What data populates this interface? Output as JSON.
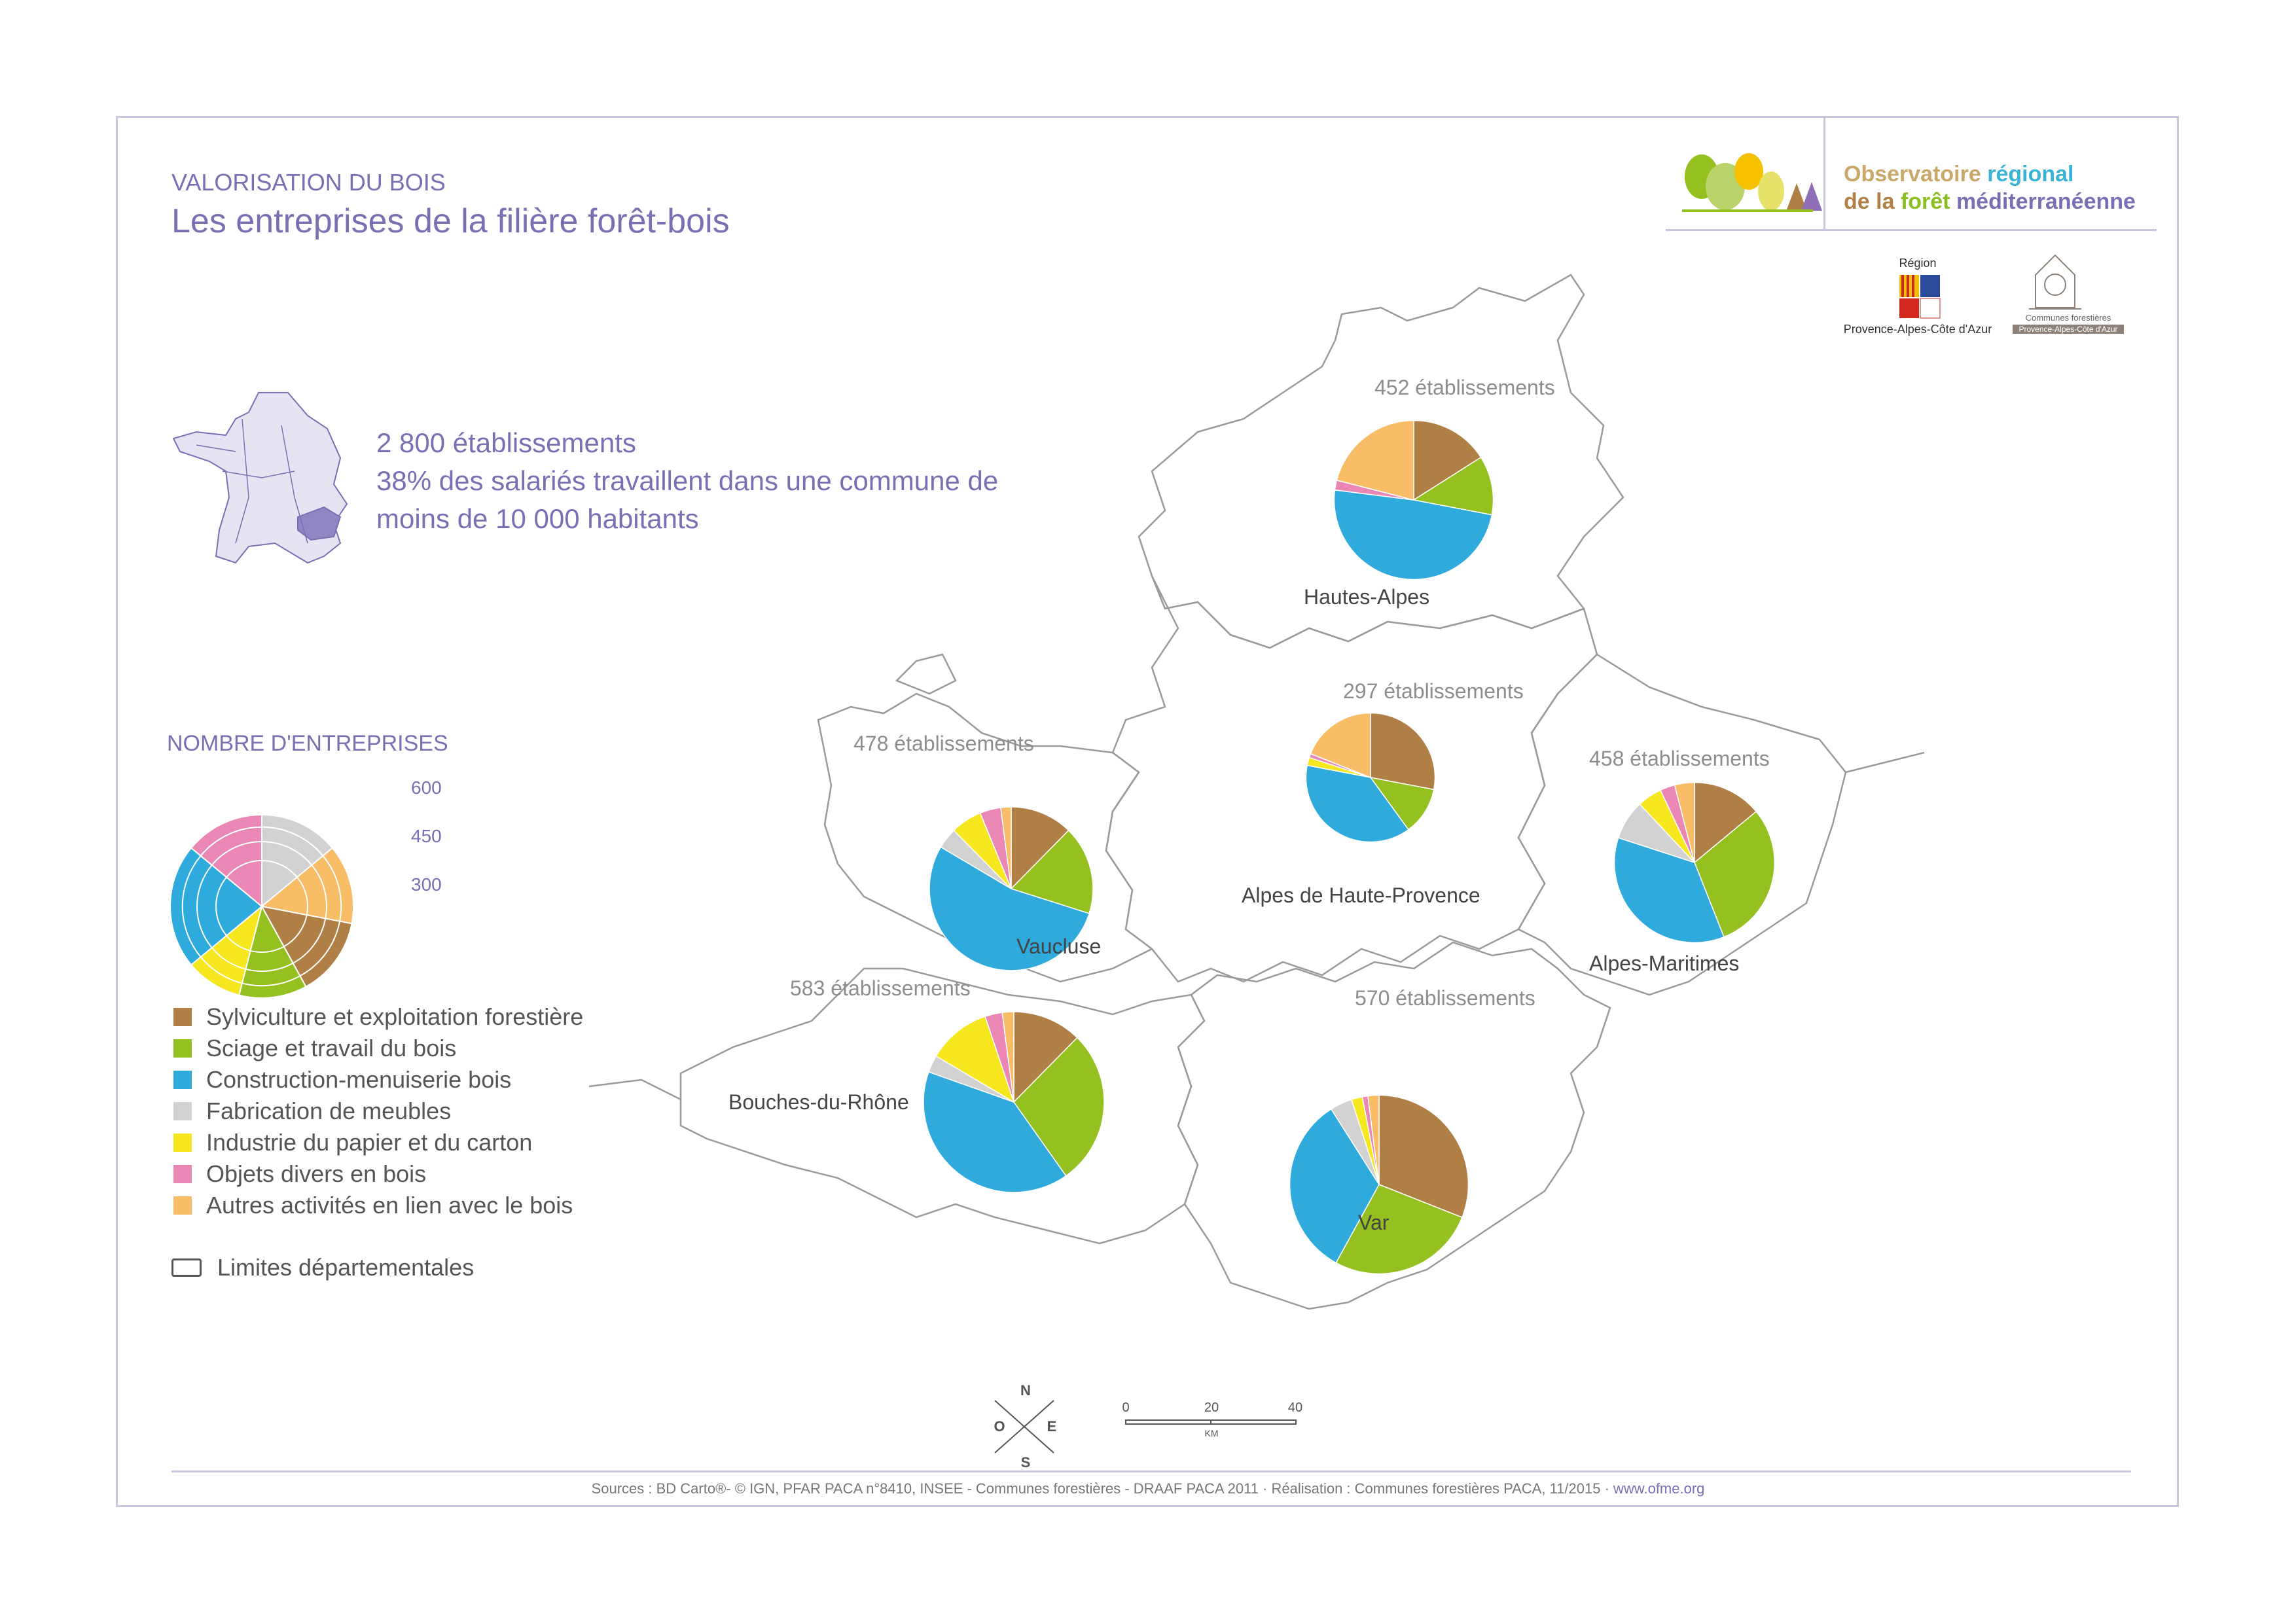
{
  "header": {
    "subtitle": "VALORISATION DU BOIS",
    "title": "Les entreprises de la filière forêt-bois"
  },
  "stats": {
    "line1": "2 800 établissements",
    "line2": "38% des salariés travaillent dans une commune de",
    "line3": "moins de 10 000 habitants"
  },
  "logo": {
    "org_line1_a": "Observatoire",
    "org_line1_b": "régional",
    "org_line2_a": "de la",
    "org_line2_b": "forêt",
    "org_line2_c": "méditerranéenne",
    "region_top": "Région",
    "region_bottom": "Provence-Alpes-Côte d'Azur",
    "communes_top": "Communes forestières",
    "communes_bottom": "Provence-Alpes-Côte d'Azur"
  },
  "size_legend": {
    "title": "NOMBRE D'ENTREPRISES",
    "v600": "600",
    "v450": "450",
    "v300": "300"
  },
  "categories": [
    {
      "label": "Sylviculture et exploitation forestière",
      "color": "#b07f46"
    },
    {
      "label": "Sciage et travail du bois",
      "color": "#94c11f"
    },
    {
      "label": "Construction-menuiserie bois",
      "color": "#2eaadc"
    },
    {
      "label": "Fabrication de meubles",
      "color": "#d2d2d2"
    },
    {
      "label": "Industrie du papier et du carton",
      "color": "#f6e71e"
    },
    {
      "label": "Objets divers en bois",
      "color": "#ea87b4"
    },
    {
      "label": "Autres activités en lien avec le bois",
      "color": "#f8bd66"
    }
  ],
  "limits_label": "Limites départementales",
  "compass": {
    "n": "N",
    "s": "S",
    "e": "E",
    "o": "O"
  },
  "scale": {
    "t0": "0",
    "t20": "20",
    "t40": "40",
    "unit": "KM"
  },
  "source_text": "Sources : BD Carto®- © IGN, PFAR PACA n°8410, INSEE - Communes forestières - DRAAF PACA 2011 · Réalisation : Communes forestières PACA, 11/2015 · ",
  "source_link": "www.ofme.org",
  "departments": [
    {
      "name": "Hautes-Alpes",
      "count_label": "452 établissements",
      "count": 452,
      "shares": [
        0.16,
        0.12,
        0.49,
        0.0,
        0.0,
        0.02,
        0.21
      ]
    },
    {
      "name": "Alpes de Haute-Provence",
      "count_label": "297 établissements",
      "count": 297,
      "shares": [
        0.28,
        0.12,
        0.38,
        0.0,
        0.02,
        0.01,
        0.19
      ]
    },
    {
      "name": "Vaucluse",
      "count_label": "478 établissements",
      "count": 478,
      "shares": [
        0.12,
        0.17,
        0.52,
        0.04,
        0.06,
        0.04,
        0.02
      ]
    },
    {
      "name": "Alpes-Maritimes",
      "count_label": "458 établissements",
      "count": 458,
      "shares": [
        0.14,
        0.3,
        0.36,
        0.08,
        0.05,
        0.03,
        0.04
      ]
    },
    {
      "name": "Bouches-du-Rhône",
      "count_label": "583 établissements",
      "count": 583,
      "shares": [
        0.12,
        0.27,
        0.39,
        0.03,
        0.11,
        0.03,
        0.02
      ]
    },
    {
      "name": "Var",
      "count_label": "570 établissements",
      "count": 570,
      "shares": [
        0.31,
        0.27,
        0.33,
        0.04,
        0.02,
        0.01,
        0.02
      ]
    }
  ]
}
